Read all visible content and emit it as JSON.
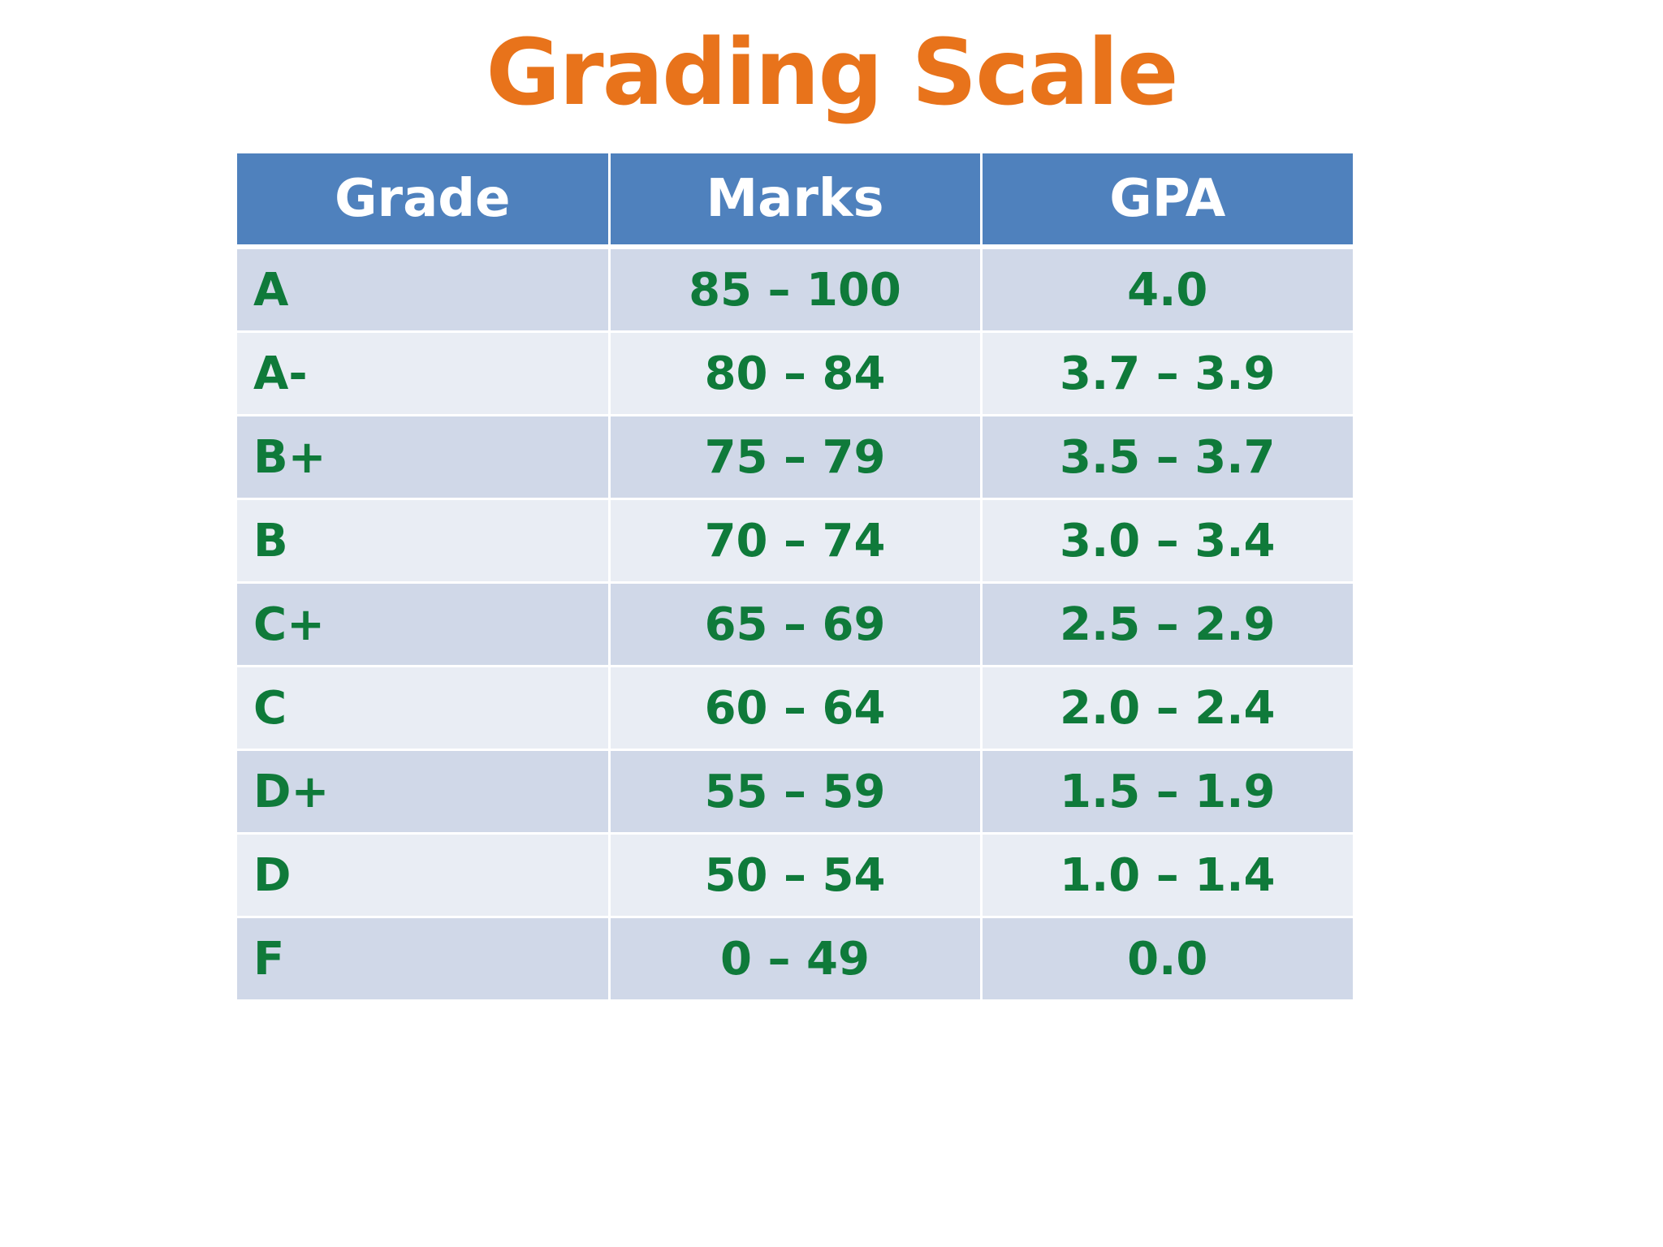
{
  "title": "Grading Scale",
  "table": {
    "headers": [
      "Grade",
      "Marks",
      "GPA"
    ],
    "rows": [
      {
        "grade": "A",
        "marks": "85 – 100",
        "gpa": "4.0"
      },
      {
        "grade": "A-",
        "marks": "80 – 84",
        "gpa": "3.7 – 3.9"
      },
      {
        "grade": "B+",
        "marks": "75 – 79",
        "gpa": "3.5 – 3.7"
      },
      {
        "grade": "B",
        "marks": "70 – 74",
        "gpa": "3.0 – 3.4"
      },
      {
        "grade": "C+",
        "marks": "65 – 69",
        "gpa": "2.5 – 2.9"
      },
      {
        "grade": "C",
        "marks": "60 – 64",
        "gpa": "2.0 – 2.4"
      },
      {
        "grade": "D+",
        "marks": "55 – 59",
        "gpa": "1.5 – 1.9"
      },
      {
        "grade": "D",
        "marks": "50 – 54",
        "gpa": "1.0 – 1.4"
      },
      {
        "grade": "F",
        "marks": "0 – 49",
        "gpa": "0.0"
      }
    ]
  },
  "colors": {
    "title": "#e8731b",
    "header_bg": "#4f81bd",
    "header_text": "#ffffff",
    "cell_text": "#0f7a3a",
    "row_dark": "#d0d8e8",
    "row_light": "#e9edf4"
  }
}
